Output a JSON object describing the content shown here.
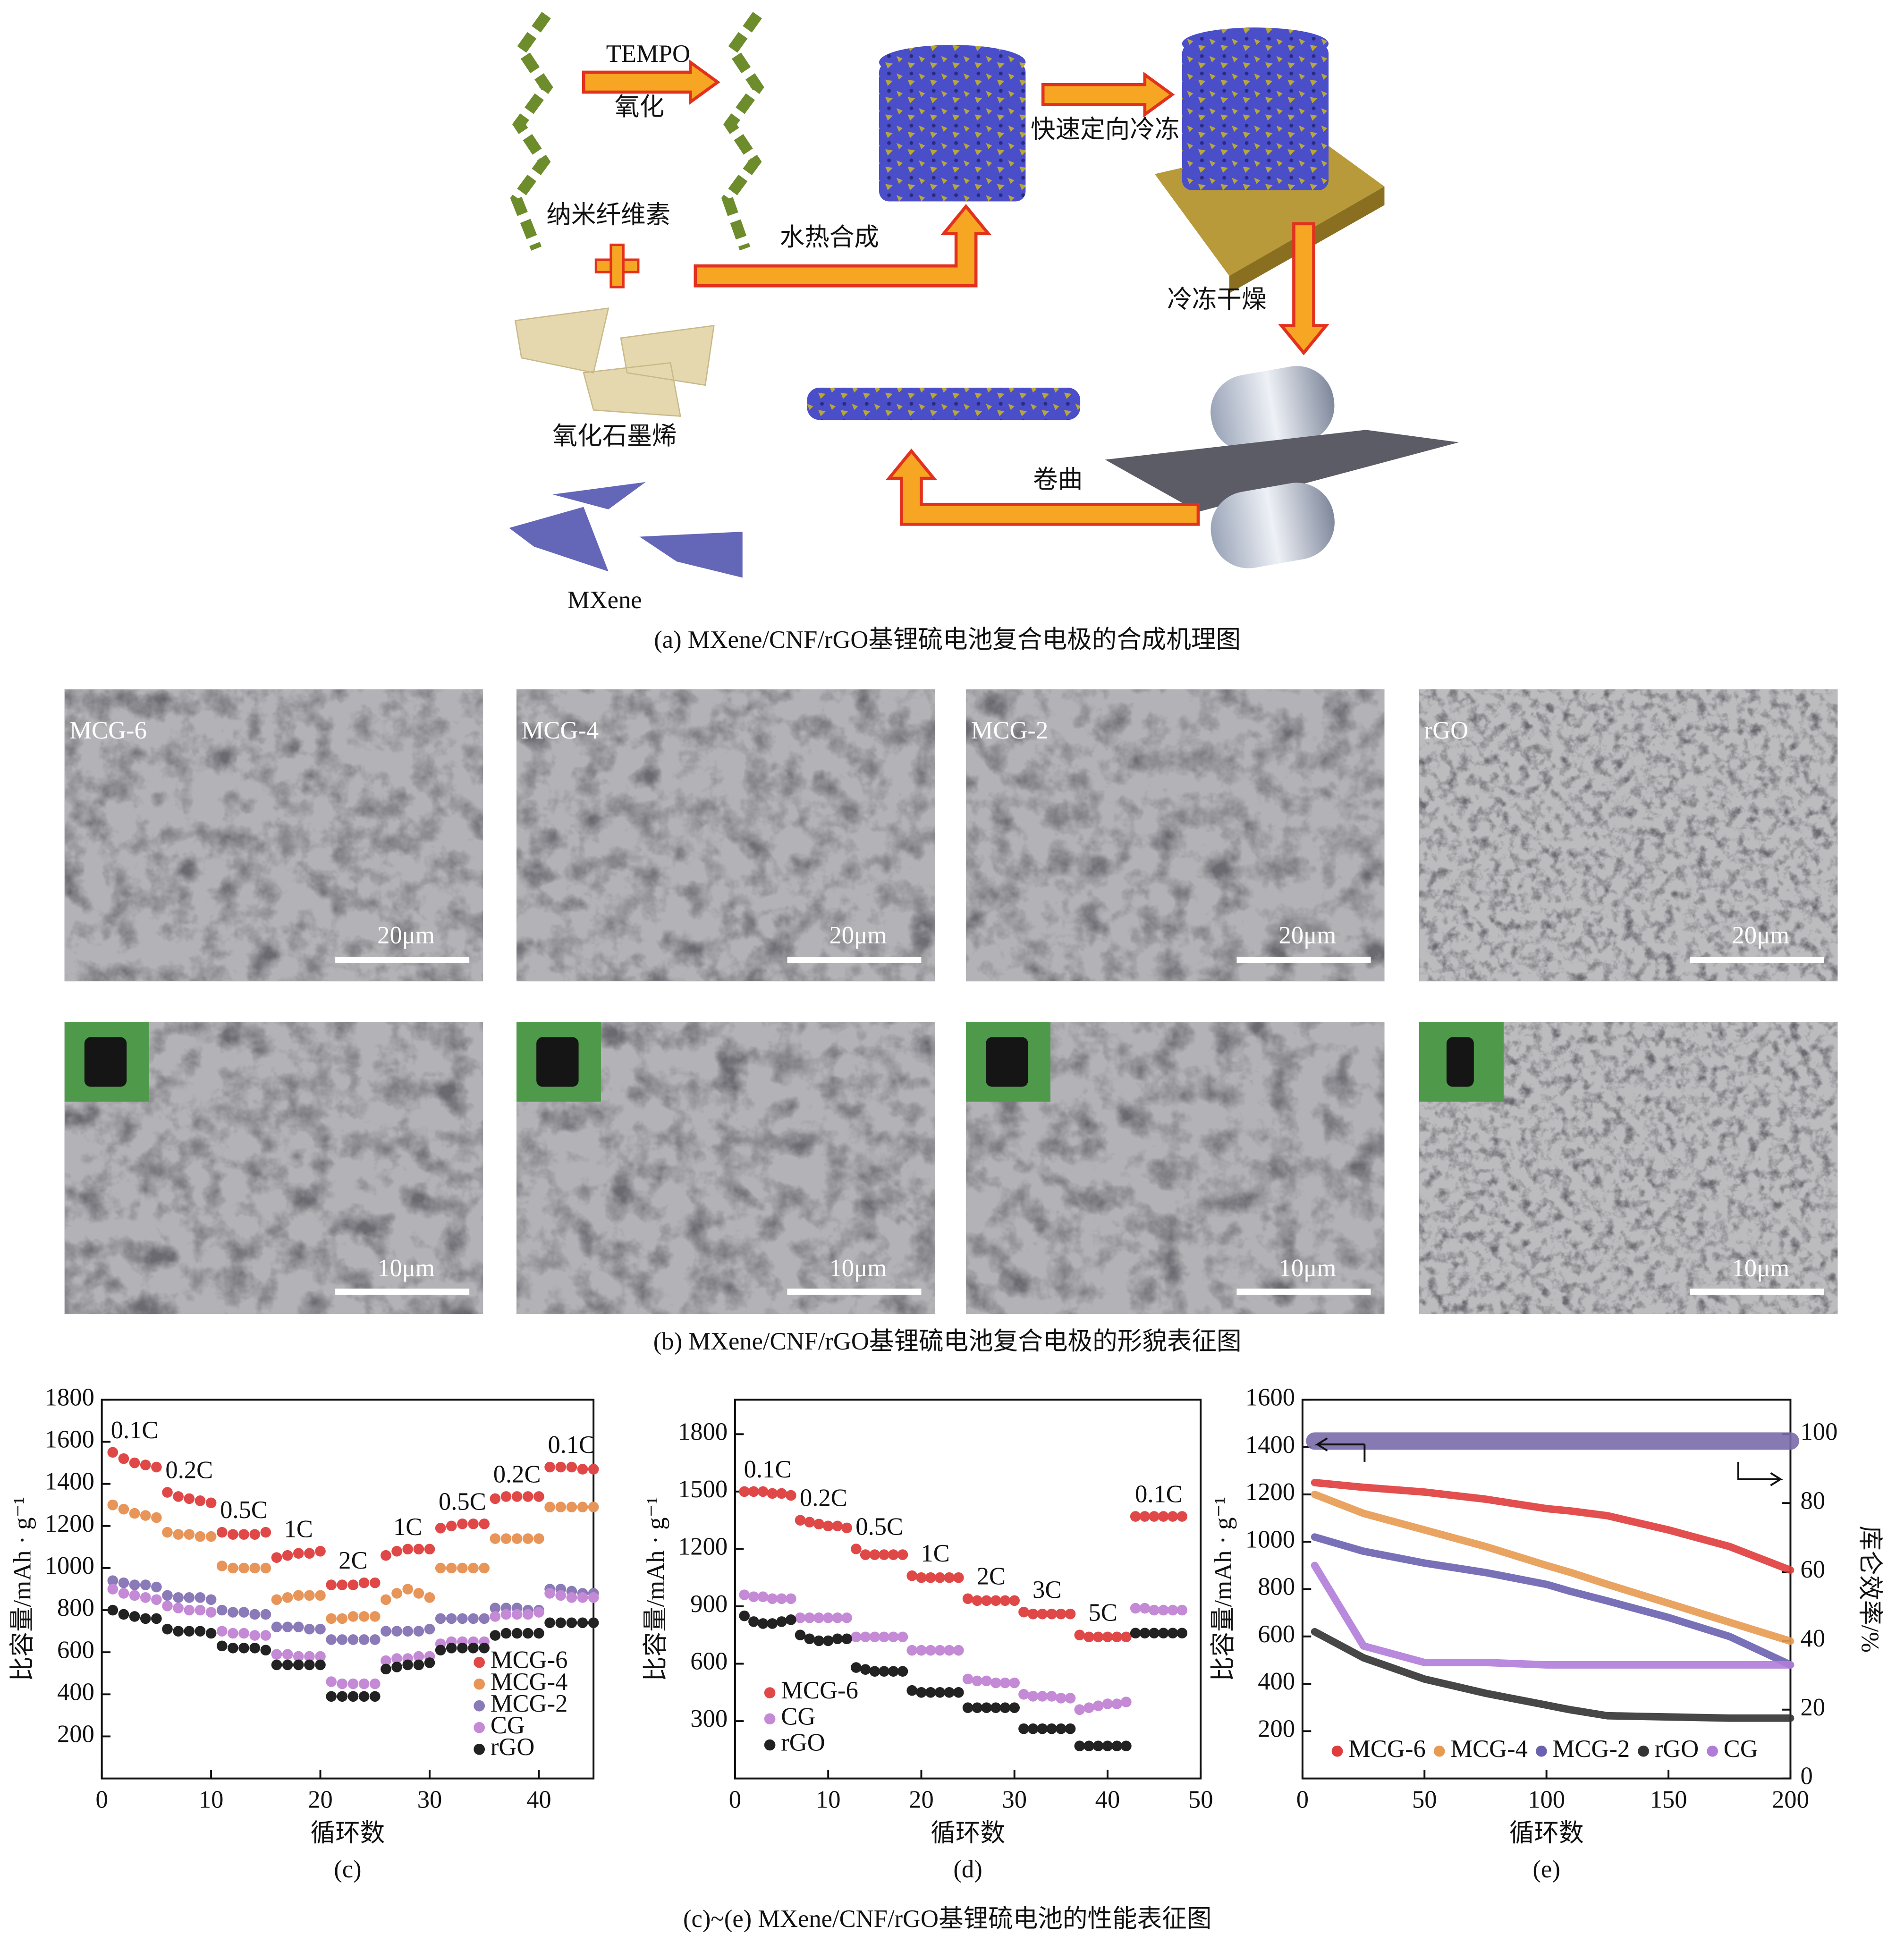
{
  "panel_a": {
    "labels": {
      "tempo": "TEMPO",
      "oxidation": "氧化",
      "cellulose": "纳米纤维素",
      "graphene_oxide": "氧化石墨烯",
      "mxene": "MXene",
      "hydrothermal": "水热合成",
      "freezing": "快速定向冷冻",
      "freeze_drying": "冷冻干燥",
      "rolling": "卷曲"
    },
    "caption": "(a) MXene/CNF/rGO基锂硫电池复合电极的合成机理图"
  },
  "panel_b": {
    "samples": [
      "MCG-6",
      "MCG-4",
      "MCG-2",
      "rGO"
    ],
    "scale_top": "20μm",
    "scale_bottom": "10μm",
    "caption": "(b) MXene/CNF/rGO基锂硫电池复合电极的形貌表征图"
  },
  "panel_ce_caption": "(c)~(e) MXene/CNF/rGO基锂硫电池的性能表征图",
  "chart_data": [
    {
      "type": "scatter",
      "panel_label": "(c)",
      "xlabel": "循环数",
      "ylabel": "比容量/mAh · g⁻¹",
      "xlim": [
        0,
        45
      ],
      "xticks": [
        0,
        10,
        20,
        30,
        40
      ],
      "ylim": [
        0,
        1800
      ],
      "yticks": [
        200,
        400,
        600,
        800,
        1000,
        1200,
        1400,
        1600,
        1800
      ],
      "legend": "lower right",
      "annotations": [
        "0.1C",
        "0.2C",
        "0.5C",
        "1C",
        "2C",
        "1C",
        "0.5C",
        "0.2C",
        "0.1C"
      ],
      "x": [
        1,
        2,
        3,
        4,
        5,
        6,
        7,
        8,
        9,
        10,
        11,
        12,
        13,
        14,
        15,
        16,
        17,
        18,
        19,
        20,
        21,
        22,
        23,
        24,
        25,
        26,
        27,
        28,
        29,
        30,
        31,
        32,
        33,
        34,
        35,
        36,
        37,
        38,
        39,
        40,
        41,
        42,
        43,
        44,
        45
      ],
      "series": [
        {
          "name": "MCG-6",
          "color": "#e04848",
          "values": [
            1550,
            1520,
            1500,
            1490,
            1480,
            1360,
            1340,
            1330,
            1320,
            1310,
            1170,
            1160,
            1160,
            1160,
            1170,
            1050,
            1060,
            1070,
            1070,
            1080,
            920,
            920,
            920,
            930,
            930,
            1060,
            1080,
            1090,
            1090,
            1090,
            1190,
            1200,
            1210,
            1210,
            1210,
            1330,
            1340,
            1340,
            1340,
            1340,
            1480,
            1480,
            1480,
            1470,
            1470
          ]
        },
        {
          "name": "MCG-4",
          "color": "#e8955a",
          "values": [
            1300,
            1280,
            1260,
            1250,
            1240,
            1170,
            1160,
            1160,
            1150,
            1150,
            1010,
            1000,
            1000,
            1000,
            1000,
            850,
            860,
            870,
            870,
            870,
            760,
            760,
            770,
            770,
            770,
            850,
            880,
            900,
            880,
            860,
            1000,
            1000,
            1000,
            1000,
            1000,
            1140,
            1140,
            1140,
            1140,
            1140,
            1290,
            1290,
            1290,
            1290,
            1290
          ]
        },
        {
          "name": "MCG-2",
          "color": "#8a7ab8",
          "values": [
            940,
            930,
            920,
            920,
            910,
            870,
            860,
            860,
            860,
            850,
            800,
            790,
            790,
            780,
            780,
            720,
            720,
            720,
            710,
            710,
            660,
            660,
            660,
            660,
            660,
            700,
            700,
            700,
            700,
            710,
            760,
            760,
            760,
            760,
            760,
            810,
            810,
            810,
            800,
            800,
            900,
            900,
            890,
            880,
            880
          ]
        },
        {
          "name": "CG",
          "color": "#c48ad6",
          "values": [
            900,
            880,
            870,
            860,
            850,
            820,
            810,
            800,
            800,
            790,
            700,
            690,
            690,
            680,
            680,
            590,
            590,
            580,
            580,
            580,
            460,
            450,
            450,
            450,
            450,
            560,
            570,
            570,
            580,
            580,
            640,
            650,
            650,
            650,
            650,
            770,
            780,
            780,
            780,
            790,
            880,
            870,
            860,
            860,
            860
          ]
        },
        {
          "name": "rGO",
          "color": "#222222",
          "values": [
            800,
            780,
            770,
            760,
            760,
            710,
            700,
            700,
            700,
            690,
            630,
            620,
            620,
            620,
            610,
            540,
            540,
            540,
            540,
            540,
            390,
            390,
            390,
            390,
            390,
            520,
            530,
            540,
            540,
            550,
            610,
            620,
            620,
            620,
            620,
            680,
            690,
            690,
            690,
            690,
            740,
            740,
            740,
            740,
            740
          ]
        }
      ]
    },
    {
      "type": "scatter",
      "panel_label": "(d)",
      "xlabel": "循环数",
      "ylabel": "比容量/mAh · g⁻¹",
      "xlim": [
        0,
        50
      ],
      "xticks": [
        0,
        10,
        20,
        30,
        40,
        50
      ],
      "ylim": [
        0,
        1980
      ],
      "yticks": [
        300,
        600,
        900,
        1200,
        1500,
        1800
      ],
      "legend": "lower left",
      "annotations": [
        "0.1C",
        "0.2C",
        "0.5C",
        "1C",
        "2C",
        "3C",
        "5C",
        "0.1C"
      ],
      "x": [
        1,
        2,
        3,
        4,
        5,
        6,
        7,
        8,
        9,
        10,
        11,
        12,
        13,
        14,
        15,
        16,
        17,
        18,
        19,
        20,
        21,
        22,
        23,
        24,
        25,
        26,
        27,
        28,
        29,
        30,
        31,
        32,
        33,
        34,
        35,
        36,
        37,
        38,
        39,
        40,
        41,
        42,
        43,
        44,
        45,
        46,
        47,
        48
      ],
      "series": [
        {
          "name": "MCG-6",
          "color": "#e04848",
          "values": [
            1500,
            1500,
            1500,
            1490,
            1490,
            1480,
            1350,
            1340,
            1330,
            1320,
            1320,
            1310,
            1200,
            1170,
            1170,
            1170,
            1170,
            1170,
            1060,
            1050,
            1050,
            1050,
            1050,
            1050,
            940,
            930,
            930,
            930,
            930,
            930,
            870,
            860,
            860,
            860,
            860,
            860,
            750,
            740,
            740,
            740,
            740,
            740,
            1370,
            1370,
            1370,
            1370,
            1370,
            1370
          ]
        },
        {
          "name": "CG",
          "color": "#c48ad6",
          "values": [
            960,
            950,
            950,
            940,
            940,
            940,
            840,
            840,
            840,
            840,
            840,
            840,
            740,
            740,
            740,
            740,
            740,
            740,
            670,
            670,
            670,
            670,
            670,
            670,
            520,
            510,
            510,
            500,
            500,
            500,
            440,
            430,
            430,
            430,
            420,
            420,
            360,
            370,
            380,
            390,
            390,
            400,
            890,
            890,
            880,
            880,
            880,
            880
          ]
        },
        {
          "name": "rGO",
          "color": "#222222",
          "values": [
            850,
            820,
            810,
            810,
            820,
            830,
            750,
            730,
            720,
            720,
            730,
            730,
            580,
            570,
            560,
            560,
            560,
            560,
            460,
            450,
            450,
            450,
            450,
            450,
            370,
            370,
            370,
            370,
            370,
            370,
            260,
            260,
            260,
            260,
            260,
            260,
            170,
            170,
            170,
            170,
            170,
            170,
            760,
            760,
            760,
            760,
            760,
            760
          ]
        }
      ]
    },
    {
      "type": "line",
      "panel_label": "(e)",
      "xlabel": "循环数",
      "ylabel": "比容量/mAh · g⁻¹",
      "y2label": "库仑效率/%",
      "xlim": [
        0,
        200
      ],
      "xticks": [
        0,
        50,
        100,
        150,
        200
      ],
      "ylim": [
        0,
        1600
      ],
      "yticks": [
        200,
        400,
        600,
        800,
        1000,
        1200,
        1400,
        1600
      ],
      "y2lim": [
        0,
        110
      ],
      "y2ticks": [
        0,
        20,
        40,
        60,
        80,
        100
      ],
      "legend": "lower center",
      "x": [
        5,
        25,
        50,
        75,
        100,
        110,
        125,
        150,
        175,
        200
      ],
      "series": [
        {
          "name": "MCG-6",
          "color": "#e03c3c",
          "values": [
            1250,
            1230,
            1210,
            1180,
            1140,
            1130,
            1110,
            1050,
            980,
            880
          ]
        },
        {
          "name": "MCG-4",
          "color": "#e89a50",
          "values": [
            1200,
            1120,
            1050,
            980,
            900,
            870,
            820,
            740,
            660,
            580
          ]
        },
        {
          "name": "MCG-2",
          "color": "#6a62b0",
          "values": [
            1020,
            960,
            910,
            870,
            820,
            790,
            750,
            680,
            600,
            480
          ]
        },
        {
          "name": "rGO",
          "color": "#333333",
          "values": [
            620,
            510,
            420,
            360,
            310,
            290,
            265,
            260,
            255,
            255
          ]
        },
        {
          "name": "CG",
          "color": "#b07cd8",
          "values": [
            900,
            560,
            490,
            490,
            480,
            480,
            480,
            480,
            480,
            480
          ]
        },
        {
          "color": "#7a6aa8",
          "axis": "y2",
          "values": [
            98,
            98,
            98,
            98,
            98,
            98,
            98,
            98,
            98,
            98
          ]
        }
      ]
    }
  ]
}
